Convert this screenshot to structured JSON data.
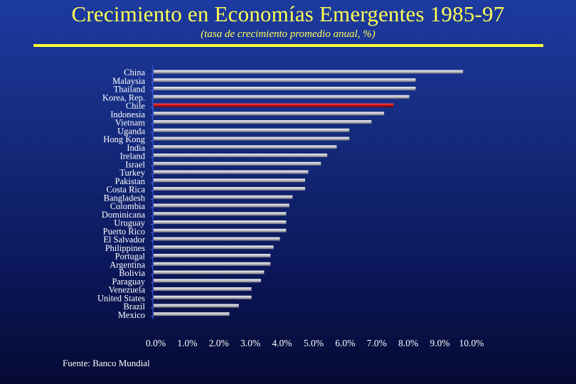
{
  "title": "Crecimiento en Economías Emergentes 1985-97",
  "subtitle": "(tasa de crecimiento promedio anual, %)",
  "source": "Fuente: Banco Mundial",
  "colors": {
    "title": "#ffff55",
    "bar": "#bfbfc6",
    "highlight": "#cc1111",
    "text": "#ffffff",
    "axis": "#4a68ff"
  },
  "chart_data": {
    "type": "bar",
    "orientation": "horizontal",
    "title": "Crecimiento en Economías Emergentes 1985-97",
    "subtitle": "(tasa de crecimiento promedio anual, %)",
    "xlabel": "",
    "ylabel": "",
    "xlim": [
      0,
      10
    ],
    "xticks": [
      "0.0%",
      "1.0%",
      "2.0%",
      "3.0%",
      "4.0%",
      "5.0%",
      "6.0%",
      "7.0%",
      "8.0%",
      "9.0%",
      "10.0%"
    ],
    "grid": false,
    "highlight": "Chile",
    "categories": [
      "China",
      "Malaysia",
      "Thailand",
      "Korea, Rep.",
      "Chile",
      "Indonesia",
      "Vietnam",
      "Uganda",
      "Hong Kong",
      "India",
      "Ireland",
      "Israel",
      "Turkey",
      "Pakistan",
      "Costa Rica",
      "Bangladesh",
      "Colombia",
      "Dominicana",
      "Uruguay",
      "Puerto Rico",
      "El Salvador",
      "Philippines",
      "Portugal",
      "Argentina",
      "Bolivia",
      "Paraguay",
      "Venezuela",
      "United States",
      "Brazil",
      "Mexico"
    ],
    "values": [
      9.8,
      8.3,
      8.3,
      8.1,
      7.6,
      7.3,
      6.9,
      6.2,
      6.2,
      5.8,
      5.5,
      5.3,
      4.9,
      4.8,
      4.8,
      4.4,
      4.3,
      4.2,
      4.2,
      4.2,
      4.0,
      3.8,
      3.7,
      3.7,
      3.5,
      3.4,
      3.1,
      3.1,
      2.7,
      2.4
    ]
  }
}
